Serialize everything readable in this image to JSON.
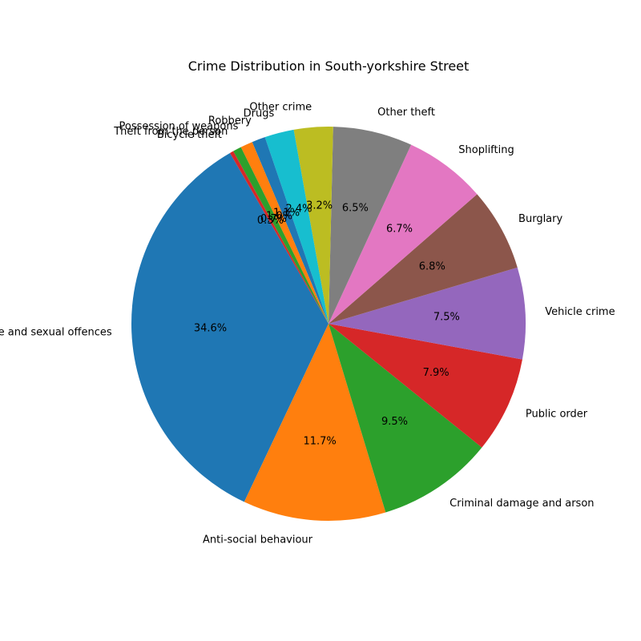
{
  "chart_data": {
    "type": "pie",
    "title": "Crime Distribution in South-yorkshire Street",
    "start_angle_deg": 120,
    "direction": "counterclockwise",
    "slices": [
      {
        "label": "Violence and sexual offences",
        "value": 34.6,
        "pct_label": "34.6%",
        "color": "#1f77b4"
      },
      {
        "label": "Anti-social behaviour",
        "value": 11.7,
        "pct_label": "11.7%",
        "color": "#ff7f0e"
      },
      {
        "label": "Criminal damage and arson",
        "value": 9.5,
        "pct_label": "9.5%",
        "color": "#2ca02c"
      },
      {
        "label": "Public order",
        "value": 7.9,
        "pct_label": "7.9%",
        "color": "#d62728"
      },
      {
        "label": "Vehicle crime",
        "value": 7.5,
        "pct_label": "7.5%",
        "color": "#9467bd"
      },
      {
        "label": "Burglary",
        "value": 6.8,
        "pct_label": "6.8%",
        "color": "#8c564b"
      },
      {
        "label": "Shoplifting",
        "value": 6.7,
        "pct_label": "6.7%",
        "color": "#e377c2"
      },
      {
        "label": "Other theft",
        "value": 6.5,
        "pct_label": "6.5%",
        "color": "#7f7f7f"
      },
      {
        "label": "Other crime",
        "value": 3.2,
        "pct_label": "3.2%",
        "color": "#bcbd22"
      },
      {
        "label": "Drugs",
        "value": 2.4,
        "pct_label": "2.4%",
        "color": "#17becf"
      },
      {
        "label": "Robbery",
        "value": 1.1,
        "pct_label": "1.1%",
        "color": "#1f77b4"
      },
      {
        "label": "Possession of weapons",
        "value": 1.0,
        "pct_label": "1.0%",
        "color": "#ff7f0e"
      },
      {
        "label": "Theft from the person",
        "value": 0.7,
        "pct_label": "0.7%",
        "color": "#2ca02c"
      },
      {
        "label": "Bicycle theft",
        "value": 0.3,
        "pct_label": "0.3%",
        "color": "#d62728"
      }
    ]
  }
}
